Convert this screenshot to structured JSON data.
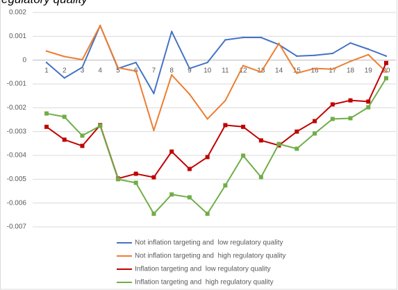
{
  "chart_data": {
    "type": "line",
    "title": "egulatory quality",
    "categories": [
      "1",
      "2",
      "3",
      "4",
      "5",
      "6",
      "7",
      "8",
      "9",
      "10",
      "11",
      "12",
      "13",
      "14",
      "15",
      "16",
      "17",
      "18",
      "19",
      "20"
    ],
    "ylim": [
      -0.007,
      0.002
    ],
    "yticks": [
      0.002,
      0.001,
      0,
      -0.001,
      -0.002,
      -0.003,
      -0.004,
      -0.005,
      -0.006,
      -0.007
    ],
    "grid": true,
    "legend": "bottom",
    "series": [
      {
        "name": "Not inflation targeting and  low regulatory quality",
        "color": "#4472c4",
        "markers": false,
        "values": [
          -0.0001,
          -0.00075,
          -0.0003,
          0.00145,
          -0.00035,
          -0.0001,
          -0.0014,
          0.0012,
          -0.00035,
          -0.0001,
          0.00085,
          0.00095,
          0.00095,
          0.00065,
          0.00017,
          0.0002,
          0.00028,
          0.00072,
          0.00046,
          0.00017
        ]
      },
      {
        "name": "Not inflation targeting and  high regulatory quality",
        "color": "#ed7d31",
        "markers": false,
        "values": [
          0.00038,
          0.00015,
          2e-05,
          0.00145,
          -0.00032,
          -0.00046,
          -0.00295,
          -0.00062,
          -0.00143,
          -0.00247,
          -0.0017,
          -0.00023,
          -0.0005,
          0.0007,
          -0.00055,
          -0.00035,
          -0.00038,
          -5e-05,
          0.00023,
          -0.0005
        ]
      },
      {
        "name": "Inflation targeting and  low regulatory quality",
        "color": "#c00000",
        "markers": true,
        "values": [
          -0.0028,
          -0.00334,
          -0.0036,
          -0.00273,
          -0.00497,
          -0.00477,
          -0.00492,
          -0.00384,
          -0.00457,
          -0.00407,
          -0.00273,
          -0.0028,
          -0.00337,
          -0.00358,
          -0.003,
          -0.00256,
          -0.00186,
          -0.00169,
          -0.00174,
          -0.00012
        ]
      },
      {
        "name": "Inflation targeting and  high regulatory quality",
        "color": "#70ad47",
        "markers": true,
        "values": [
          -0.00224,
          -0.00238,
          -0.00317,
          -0.00276,
          -0.005,
          -0.00515,
          -0.00645,
          -0.00564,
          -0.00576,
          -0.00645,
          -0.00526,
          -0.00401,
          -0.00491,
          -0.00352,
          -0.00372,
          -0.00308,
          -0.00247,
          -0.00244,
          -0.00198,
          -0.00076
        ]
      }
    ]
  }
}
